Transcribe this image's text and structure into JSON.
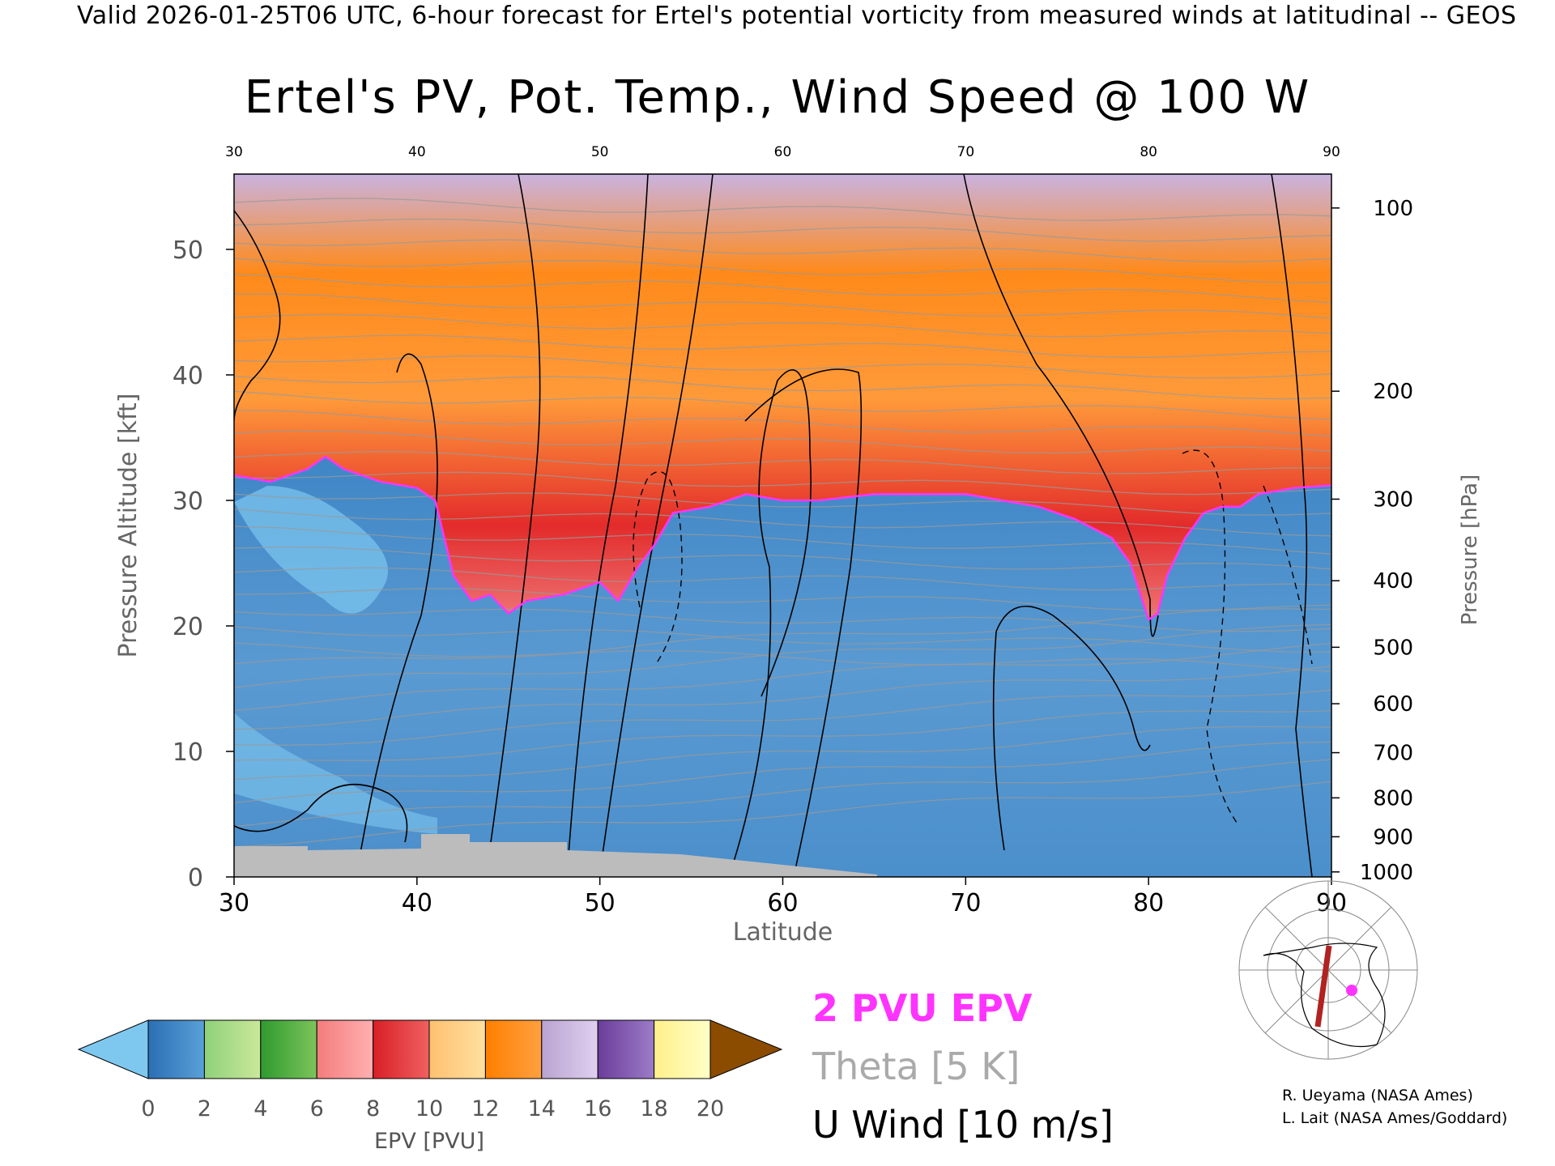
{
  "header": "Valid 2026-01-25T06 UTC, 6-hour forecast for Ertel's potential vorticity from measured winds at latitudinal -- GEOS",
  "chart_data": {
    "type": "heatmap",
    "title": "Ertel's PV, Pot. Temp., Wind Speed @ 100 W",
    "xlabel": "Latitude",
    "ylabel": "Pressure Altitude [kft]",
    "y2label": "Pressure [hPa]",
    "xlim": [
      30,
      90
    ],
    "ylim": [
      0,
      56
    ],
    "x_ticks": [
      30,
      40,
      50,
      60,
      70,
      80,
      90
    ],
    "y_ticks": [
      0,
      10,
      20,
      30,
      40,
      50
    ],
    "pressure_ticks": [
      {
        "label": "100",
        "kft": 53.3
      },
      {
        "label": "200",
        "kft": 38.7
      },
      {
        "label": "300",
        "kft": 30.1
      },
      {
        "label": "400",
        "kft": 23.6
      },
      {
        "label": "500",
        "kft": 18.3
      },
      {
        "label": "600",
        "kft": 13.8
      },
      {
        "label": "700",
        "kft": 9.9
      },
      {
        "label": "800",
        "kft": 6.3
      },
      {
        "label": "900",
        "kft": 3.2
      },
      {
        "label": "1000",
        "kft": 0.4
      }
    ],
    "tropopause_2pvu": {
      "lat": [
        30,
        32,
        34,
        35,
        36,
        38,
        40,
        41,
        42,
        43,
        44,
        45,
        46,
        48,
        50,
        51,
        52,
        53,
        54,
        56,
        58,
        60,
        62,
        65,
        68,
        70,
        72,
        74,
        76,
        78,
        79,
        80,
        80.5,
        81,
        82,
        83,
        84,
        85,
        86,
        88,
        90
      ],
      "kft": [
        32,
        31.5,
        32.5,
        33.5,
        32.5,
        31.5,
        31,
        30,
        24,
        22,
        22.5,
        21,
        22,
        22.5,
        23.5,
        22,
        24.5,
        26.5,
        29,
        29.5,
        30.5,
        30,
        30,
        30.5,
        30.5,
        30.5,
        30,
        29.5,
        28.5,
        27,
        25,
        20.5,
        21,
        24,
        27,
        29,
        29.5,
        29.5,
        30.5,
        31,
        31.2
      ]
    },
    "colorbar": {
      "label": "EPV [PVU]",
      "ticks": [
        "0",
        "2",
        "4",
        "6",
        "8",
        "10",
        "12",
        "14",
        "16",
        "18",
        "20"
      ],
      "colors": [
        "#7ec8f0",
        "#2b6fb4",
        "#5aa0d8",
        "#8fd17a",
        "#cbe89a",
        "#2f9a2f",
        "#7cc45b",
        "#f47c7c",
        "#ffb0b0",
        "#d81f26",
        "#f06060",
        "#ffc070",
        "#ffe0a0",
        "#ff7f00",
        "#ffa040",
        "#b9a3d0",
        "#e0d0f0",
        "#6a3d9a",
        "#9c7cc8",
        "#fff08a",
        "#ffffc8",
        "#8b4c00"
      ]
    },
    "legend": [
      {
        "label": "2 PVU EPV",
        "color": "#ff33ff"
      },
      {
        "label": "Theta [5 K]",
        "color": "#aaaaaa"
      },
      {
        "label": "U Wind [10 m/s]",
        "color": "#000000"
      }
    ]
  },
  "credits": [
    "R. Ueyama (NASA Ames)",
    "L. Lait (NASA Ames/Goddard)"
  ],
  "inset": {
    "marker_color": "#ff33ff",
    "section_color": "#b22222"
  }
}
